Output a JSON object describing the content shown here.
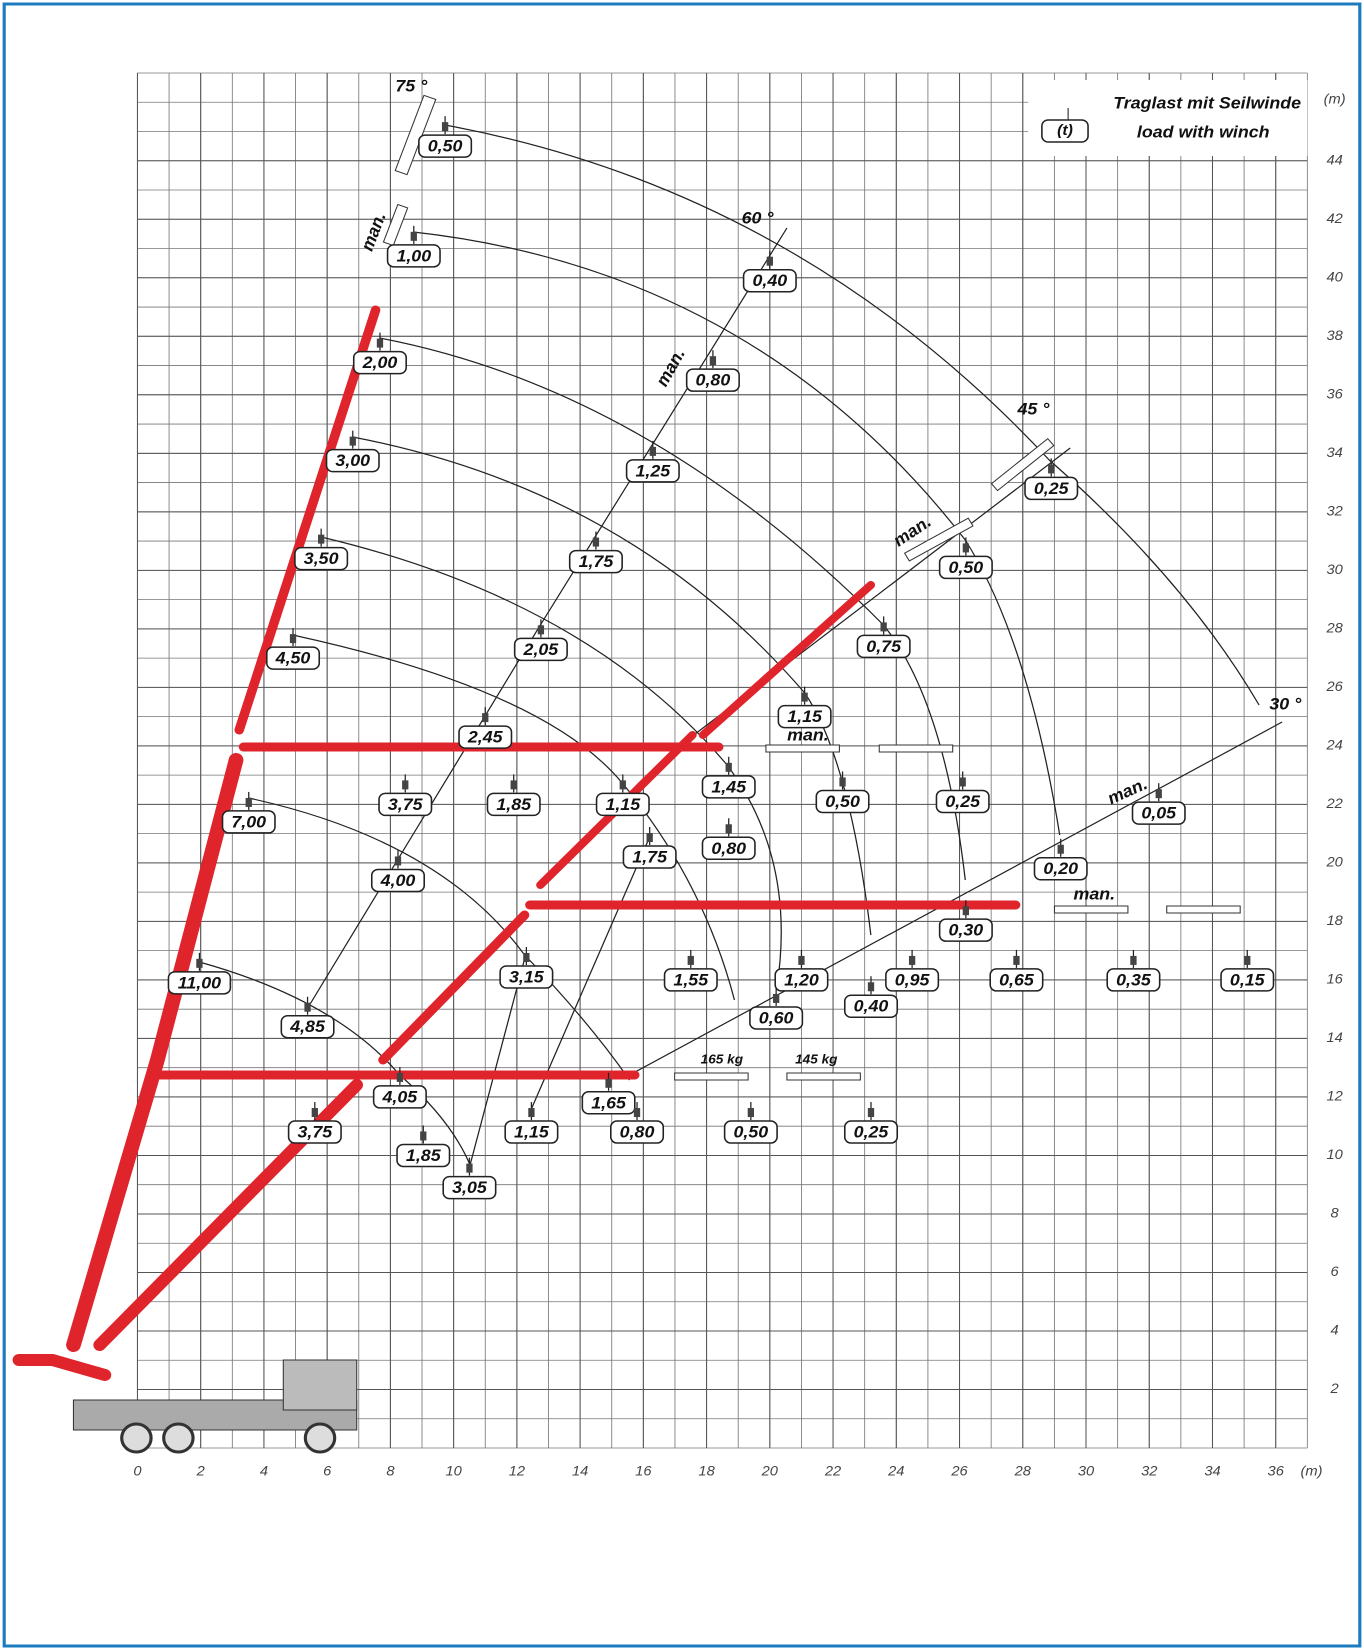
{
  "chart_data": {
    "type": "load-chart",
    "xlim": [
      0,
      37
    ],
    "ylim": [
      0,
      47
    ],
    "xticks": [
      0,
      2,
      4,
      6,
      8,
      10,
      12,
      14,
      16,
      18,
      20,
      22,
      24,
      26,
      28,
      30,
      32,
      34,
      36
    ],
    "yticks": [
      2,
      4,
      6,
      8,
      10,
      12,
      14,
      16,
      18,
      20,
      22,
      24,
      26,
      28,
      30,
      32,
      34,
      36,
      38,
      40,
      42,
      44
    ],
    "grid_step": 1,
    "x_unit": "(m)",
    "y_unit": "(m)",
    "legend": {
      "symbol": "(t)",
      "line1": "Traglast mit Seilwinde",
      "line2": "load with winch"
    },
    "angles": [
      "75 °",
      "60 °",
      "45 °",
      "30 °"
    ],
    "manual_labels": [
      "man.",
      "man.",
      "man.",
      "man.",
      "man.",
      "man."
    ],
    "weight_labels": [
      "165 kg",
      "145 kg"
    ],
    "boom_color": "#e0242b",
    "loads": {
      "x": [
        9.73,
        8.74,
        20.0,
        7.67,
        18.2,
        6.81,
        16.3,
        28.9,
        5.81,
        14.5,
        26.2,
        12.76,
        23.6,
        4.92,
        21.1,
        11.0,
        18.7,
        22.3,
        26.1,
        8.47,
        11.9,
        15.35,
        3.52,
        32.3,
        18.7,
        16.2,
        29.2,
        8.24,
        26.2,
        17.5,
        21.0,
        24.5,
        27.8,
        31.5,
        35.1,
        23.2,
        12.3,
        1.96,
        20.2,
        5.38,
        8.3,
        14.9,
        5.61,
        12.46,
        15.8,
        19.4,
        23.2,
        9.04,
        10.5
      ],
      "y": [
        44.5,
        40.75,
        39.9,
        37.1,
        36.5,
        33.75,
        33.4,
        32.8,
        30.4,
        30.3,
        30.1,
        27.3,
        27.4,
        27.0,
        25.0,
        24.3,
        22.6,
        22.1,
        22.1,
        22.0,
        22.0,
        22.0,
        21.4,
        21.7,
        20.5,
        20.2,
        19.8,
        19.4,
        17.7,
        16.0,
        16.0,
        16.0,
        16.0,
        16.0,
        16.0,
        15.1,
        16.1,
        15.9,
        14.7,
        14.4,
        12.0,
        11.8,
        10.8,
        10.8,
        10.8,
        10.8,
        10.8,
        10.0,
        8.9
      ],
      "values": [
        0.5,
        1,
        0.4,
        2,
        0.8,
        3,
        1.25,
        0.25,
        3.5,
        1.75,
        0.5,
        2.05,
        0.75,
        4.5,
        1.15,
        2.45,
        1.45,
        0.5,
        0.25,
        3.75,
        1.85,
        1.15,
        7,
        0.05,
        0.8,
        1.75,
        0.2,
        4,
        0.3,
        1.55,
        1.2,
        0.95,
        0.65,
        0.35,
        0.15,
        0.4,
        3.15,
        11,
        0.6,
        4.85,
        4.05,
        1.65,
        3.75,
        1.15,
        0.8,
        0.5,
        0.25,
        1.85,
        3.05
      ],
      "value_labels": [
        "0,50",
        "1,00",
        "0,40",
        "2,00",
        "0,80",
        "3,00",
        "1,25",
        "0,25",
        "3,50",
        "1,75",
        "0,50",
        "2,05",
        "0,75",
        "4,50",
        "1,15",
        "2,45",
        "1,45",
        "0,50",
        "0,25",
        "3,75",
        "1,85",
        "1,15",
        "7,00",
        "0,05",
        "0,80",
        "1,75",
        "0,20",
        "4,00",
        "0,30",
        "1,55",
        "1,20",
        "0,95",
        "0,65",
        "0,35",
        "0,15",
        "0,40",
        "3,15",
        "11,00",
        "0,60",
        "4,85",
        "4,05",
        "1,65",
        "3,75",
        "1,15",
        "0,80",
        "0,50",
        "0,25",
        "1,85",
        "3,05"
      ]
    }
  }
}
